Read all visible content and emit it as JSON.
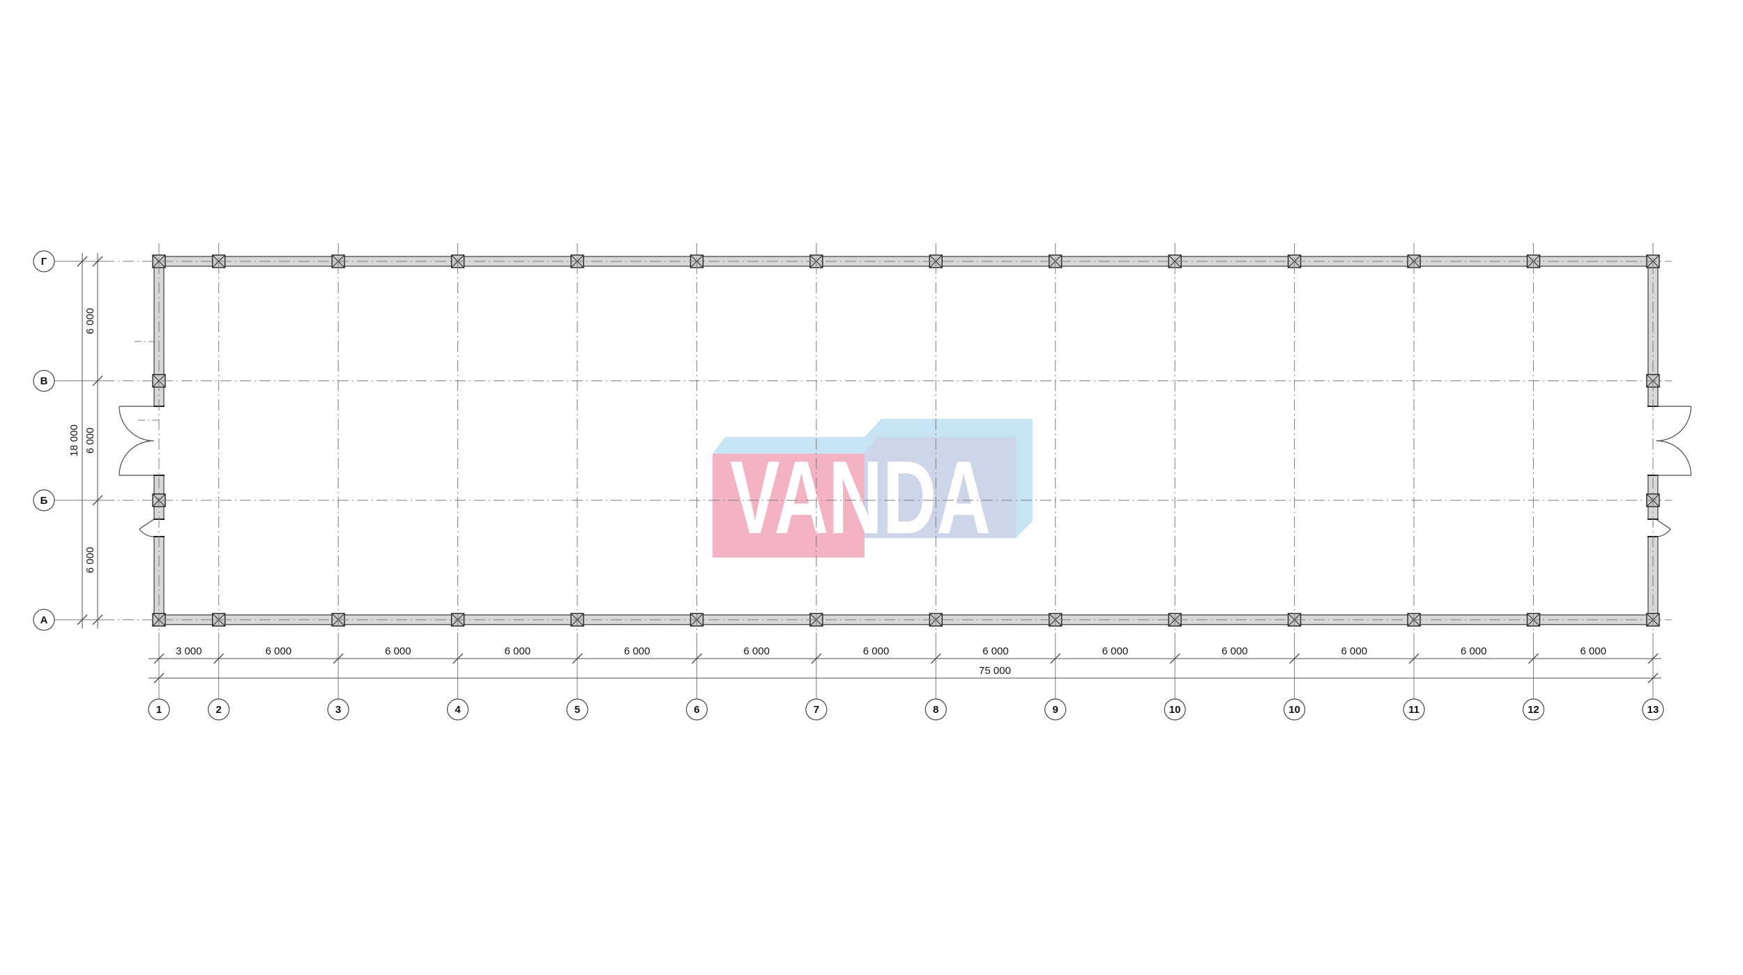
{
  "drawing": {
    "type": "architectural-floor-plan",
    "watermark": {
      "text": "VANDA"
    },
    "grid": {
      "column_labels": [
        "1",
        "2",
        "3",
        "4",
        "5",
        "6",
        "7",
        "8",
        "9",
        "10",
        "10",
        "11",
        "12",
        "13"
      ],
      "row_labels": [
        "Г",
        "В",
        "Б",
        "А"
      ]
    },
    "dimensions": {
      "bottom_segments": [
        "3 000",
        "6 000",
        "6 000",
        "6 000",
        "6 000",
        "6 000",
        "6 000",
        "6 000",
        "6 000",
        "6 000",
        "6 000",
        "6 000",
        "6 000"
      ],
      "bottom_total": "75 000",
      "left_segments": [
        "6 000",
        "6 000",
        "6 000"
      ],
      "left_total": "18 000"
    },
    "colors": {
      "wall_fill": "#d8d8d8",
      "wall_stroke": "#3d3d3d",
      "column_fill": "#c9c9c9",
      "column_stroke": "#222222",
      "grid_line": "#7c7c7c",
      "dim_line": "#4f4f4f",
      "door_line": "#4a4a4a",
      "text": "#161616",
      "logo_pink": "#f3b3c2",
      "logo_blue": "#c6e4f4",
      "logo_lavender": "#cdd6e9",
      "logo_text_color": "#ffffff"
    }
  }
}
